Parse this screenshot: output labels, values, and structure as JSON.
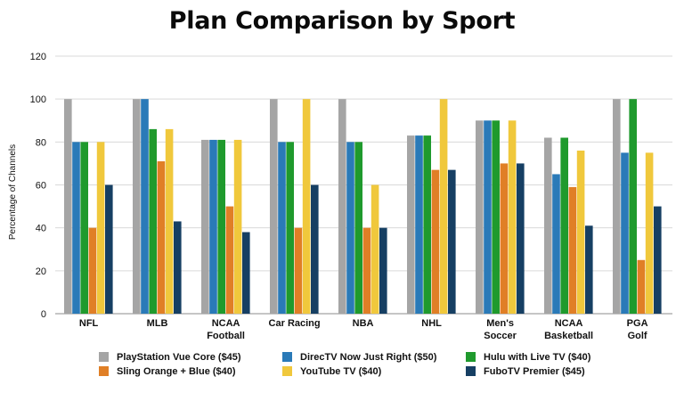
{
  "chart_data": {
    "type": "bar",
    "title": "Plan Comparison by Sport",
    "ylabel": "Percentage of Channels",
    "xlabel": "",
    "ylim": [
      0,
      120
    ],
    "yticks": [
      0,
      20,
      40,
      60,
      80,
      100,
      120
    ],
    "grid": true,
    "legend_position": "bottom",
    "categories": [
      [
        "NFL"
      ],
      [
        "MLB"
      ],
      [
        "NCAA",
        "Football"
      ],
      [
        "Car Racing"
      ],
      [
        "NBA"
      ],
      [
        "NHL"
      ],
      [
        "Men's",
        "Soccer"
      ],
      [
        "NCAA",
        "Basketball"
      ],
      [
        "PGA",
        "Golf"
      ]
    ],
    "series": [
      {
        "name": "PlayStation Vue Core ($45)",
        "color": "#a5a5a5",
        "values": [
          100,
          100,
          81,
          100,
          100,
          83,
          90,
          82,
          100
        ]
      },
      {
        "name": "DirecTV Now Just Right ($50)",
        "color": "#2a7ab8",
        "values": [
          80,
          100,
          81,
          80,
          80,
          83,
          90,
          65,
          75
        ]
      },
      {
        "name": "Hulu with Live TV ($40)",
        "color": "#1f9a2d",
        "values": [
          80,
          86,
          81,
          80,
          80,
          83,
          90,
          82,
          100
        ]
      },
      {
        "name": "Sling Orange + Blue ($40)",
        "color": "#e07f26",
        "values": [
          40,
          71,
          50,
          40,
          40,
          67,
          70,
          59,
          25
        ]
      },
      {
        "name": "YouTube TV ($40)",
        "color": "#f0c83c",
        "values": [
          80,
          86,
          81,
          100,
          60,
          100,
          90,
          76,
          75
        ]
      },
      {
        "name": "FuboTV Premier ($45)",
        "color": "#163f63",
        "values": [
          60,
          43,
          38,
          60,
          40,
          67,
          70,
          41,
          50
        ]
      }
    ]
  }
}
